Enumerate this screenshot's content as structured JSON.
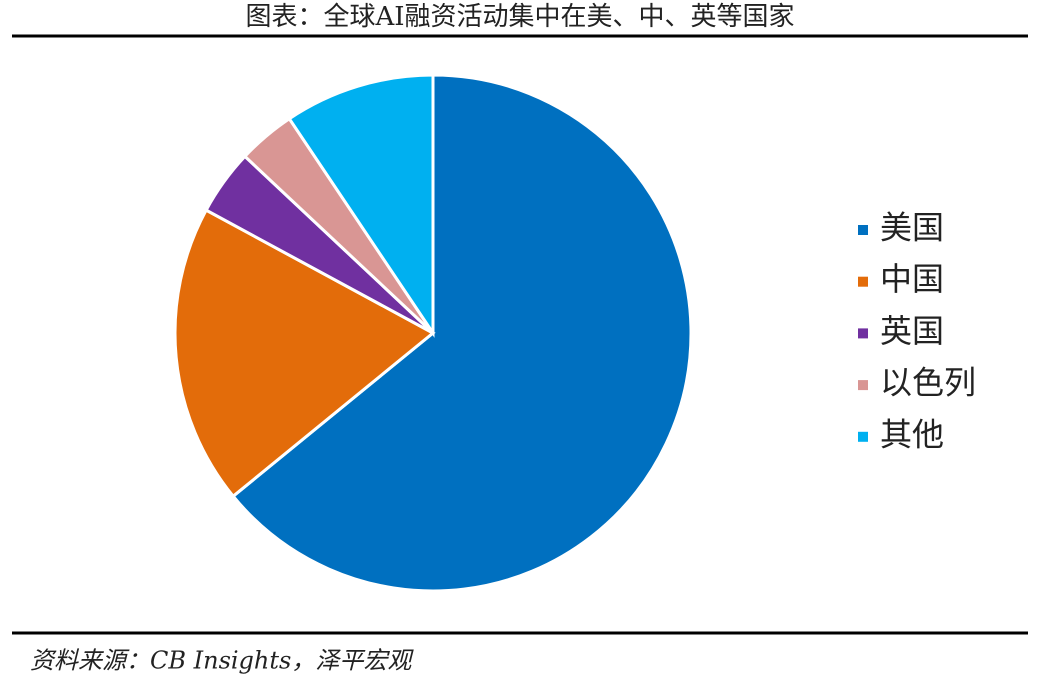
{
  "chart_data": {
    "type": "pie",
    "title": "图表：全球AI融资活动集中在美、中、英等国家",
    "source": "资料来源：CB Insights，泽平宏观",
    "categories": [
      "美国",
      "中国",
      "英国",
      "以色列",
      "其他"
    ],
    "values": [
      64.1,
      18.8,
      4.1,
      3.6,
      9.4
    ],
    "colors": [
      "#0070c0",
      "#e36c0a",
      "#7030a0",
      "#d99694",
      "#00b0f0"
    ],
    "legend": "right"
  }
}
